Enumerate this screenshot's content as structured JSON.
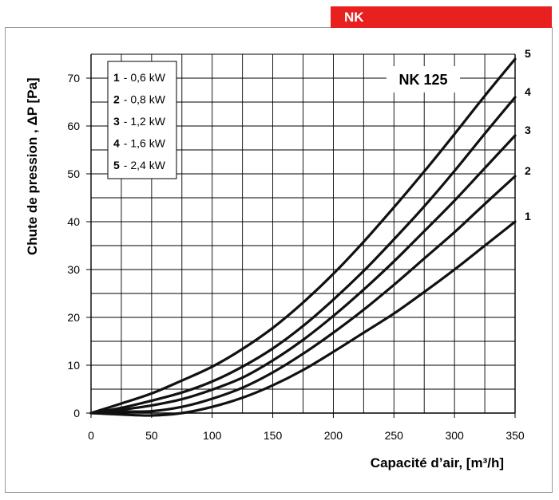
{
  "header": {
    "badge": "NK",
    "badge_color": "#e8201f"
  },
  "chart_data": {
    "type": "line",
    "model_label": "NK 125",
    "xlabel": "Capacité d’air, [m³/h]",
    "ylabel": "Chute de pression , ΔP [Pa]",
    "xlim": [
      0,
      350
    ],
    "ylim": [
      0,
      75
    ],
    "xticks": [
      0,
      50,
      100,
      150,
      200,
      250,
      300,
      350
    ],
    "yticks": [
      0,
      10,
      20,
      30,
      40,
      50,
      60,
      70
    ],
    "grid": true,
    "legend_position": "top-left",
    "legend": [
      {
        "num": "1",
        "text": "- 0,6  kW"
      },
      {
        "num": "2",
        "text": "- 0,8  kW"
      },
      {
        "num": "3",
        "text": "- 1,2  kW"
      },
      {
        "num": "4",
        "text": "- 1,6  kW"
      },
      {
        "num": "5",
        "text": "- 2,4  kW"
      }
    ],
    "x": [
      0,
      25,
      50,
      75,
      100,
      125,
      150,
      175,
      200,
      225,
      250,
      275,
      300,
      325,
      350
    ],
    "series": [
      {
        "name": "1",
        "values": [
          0,
          -0.3,
          -0.5,
          0,
          1.3,
          3.2,
          5.8,
          9.0,
          12.8,
          16.8,
          20.8,
          25.3,
          30.0,
          35.0,
          40.0
        ]
      },
      {
        "name": "2",
        "values": [
          0,
          0.3,
          0.4,
          1.3,
          3.0,
          5.3,
          8.5,
          12.4,
          16.8,
          21.6,
          26.8,
          32.3,
          37.8,
          43.7,
          49.5
        ]
      },
      {
        "name": "3",
        "values": [
          0,
          0.7,
          1.6,
          2.9,
          4.9,
          7.4,
          11.0,
          15.3,
          20.3,
          25.8,
          31.7,
          38.0,
          44.4,
          51.2,
          58.0
        ]
      },
      {
        "name": "4",
        "values": [
          0,
          1.1,
          2.6,
          4.3,
          6.6,
          9.7,
          13.5,
          18.2,
          23.7,
          29.7,
          36.3,
          43.2,
          50.6,
          58.4,
          66.0
        ]
      },
      {
        "name": "5",
        "values": [
          0,
          2.0,
          4.1,
          6.8,
          9.7,
          13.4,
          17.8,
          23.1,
          29.1,
          35.8,
          43.0,
          50.5,
          58.3,
          66.3,
          74.0
        ]
      }
    ]
  }
}
